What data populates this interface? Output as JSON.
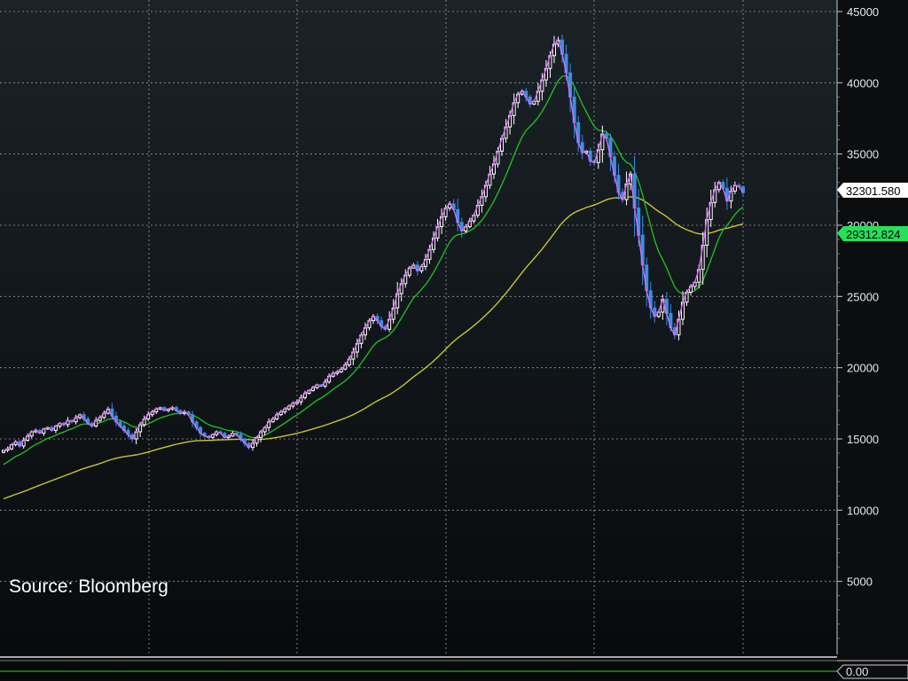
{
  "colors": {
    "background_top": "#1b2328",
    "background_bottom": "#07090b",
    "grid": "#9a9a9a",
    "candle_up": "#ffffff",
    "candle_down": "#3a8ee6",
    "close_line": "#d86cf0",
    "ma_short": "#22b822",
    "ma_long": "#c9c434",
    "axis": "#c8c8c8",
    "last_price_tag_bg": "#ffffff",
    "ma_short_tag_bg": "#27e05a"
  },
  "source_label": "Source: Bloomberg",
  "indicator_label": "0.00",
  "chart_data": {
    "type": "candlestick",
    "title": "",
    "xlabel": "",
    "ylabel": "",
    "ylim": [
      0,
      46000
    ],
    "yticks": [
      "5000",
      "10000",
      "15000",
      "20000",
      "25000",
      "30000",
      "35000",
      "40000",
      "45000"
    ],
    "grid": true,
    "last_price_label": "32301.580",
    "ma_short_label": "29312.824",
    "close": [
      14200,
      14300,
      14600,
      14800,
      14500,
      14900,
      15200,
      15500,
      15600,
      15400,
      15700,
      15800,
      15600,
      15900,
      16100,
      16000,
      16300,
      16200,
      16500,
      16700,
      16400,
      16100,
      15900,
      16300,
      16500,
      16800,
      17100,
      16600,
      16200,
      15900,
      15600,
      15300,
      15000,
      15500,
      16000,
      16400,
      16700,
      16900,
      17100,
      17200,
      17000,
      17100,
      17200,
      17000,
      16800,
      16900,
      16700,
      16200,
      15800,
      15400,
      15200,
      15100,
      15300,
      15500,
      15400,
      15100,
      15200,
      15400,
      15300,
      15000,
      14700,
      14400,
      14700,
      15100,
      15500,
      15800,
      16200,
      16400,
      16700,
      16900,
      17100,
      17300,
      17500,
      17600,
      17900,
      18200,
      18400,
      18600,
      18800,
      18700,
      19000,
      19400,
      19600,
      19700,
      19900,
      20200,
      20600,
      21100,
      21700,
      22300,
      22800,
      23300,
      23600,
      23300,
      22900,
      22700,
      23400,
      24200,
      25200,
      25900,
      26500,
      27000,
      27200,
      26800,
      27100,
      27600,
      28300,
      29100,
      29900,
      30600,
      31200,
      31500,
      31100,
      30200,
      29600,
      29900,
      30300,
      30700,
      31400,
      32000,
      32800,
      33600,
      34300,
      35200,
      36100,
      36900,
      37700,
      38600,
      39200,
      39400,
      39000,
      38500,
      38700,
      39400,
      40200,
      41000,
      41900,
      42700,
      43000,
      42000,
      40700,
      39000,
      37200,
      35800,
      35100,
      35200,
      34500,
      34400,
      35300,
      36400,
      36100,
      34800,
      33500,
      32300,
      31800,
      32900,
      33600,
      31200,
      29300,
      27200,
      25400,
      24200,
      23600,
      23900,
      24800,
      23800,
      22800,
      22300,
      23400,
      24600,
      25300,
      25700,
      26000,
      26900,
      28600,
      30400,
      31600,
      32500,
      33000,
      32600,
      31700,
      32400,
      32800,
      32700,
      32300
    ]
  }
}
